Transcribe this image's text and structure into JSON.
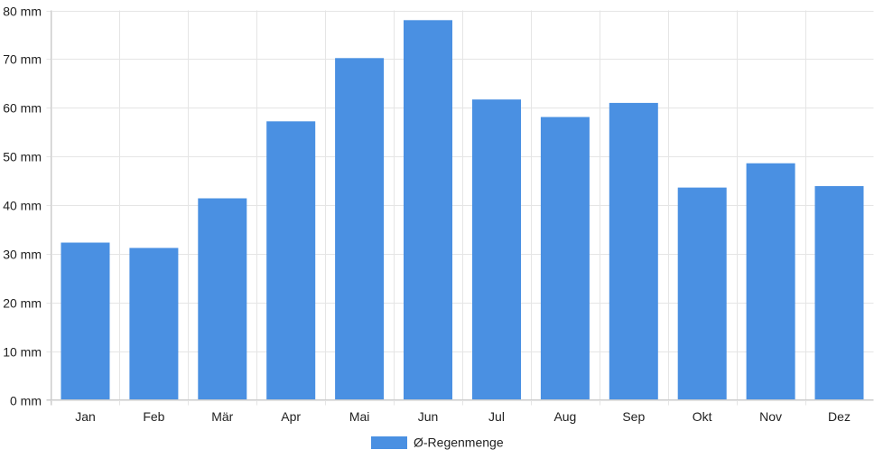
{
  "chart_data": {
    "type": "bar",
    "categories": [
      "Jan",
      "Feb",
      "Mär",
      "Apr",
      "Mai",
      "Jun",
      "Jul",
      "Aug",
      "Sep",
      "Okt",
      "Nov",
      "Dez"
    ],
    "series": [
      {
        "name": "Ø-Regenmenge",
        "values": [
          32.3,
          31.2,
          41.4,
          57.2,
          70.2,
          78.0,
          61.7,
          58.1,
          61.0,
          43.6,
          48.6,
          43.9
        ],
        "color": "#4a90e2"
      }
    ],
    "ylim": [
      0,
      80
    ],
    "yticks": [
      "0 mm",
      "10 mm",
      "20 mm",
      "30 mm",
      "40 mm",
      "50 mm",
      "60 mm",
      "70 mm",
      "80 mm"
    ],
    "ytick_values": [
      0,
      10,
      20,
      30,
      40,
      50,
      60,
      70,
      80
    ],
    "grid": true,
    "legend_position": "bottom-center",
    "colors": {
      "bar": "#4a90e2",
      "grid": "#e5e5e5",
      "text": "#222222"
    }
  }
}
